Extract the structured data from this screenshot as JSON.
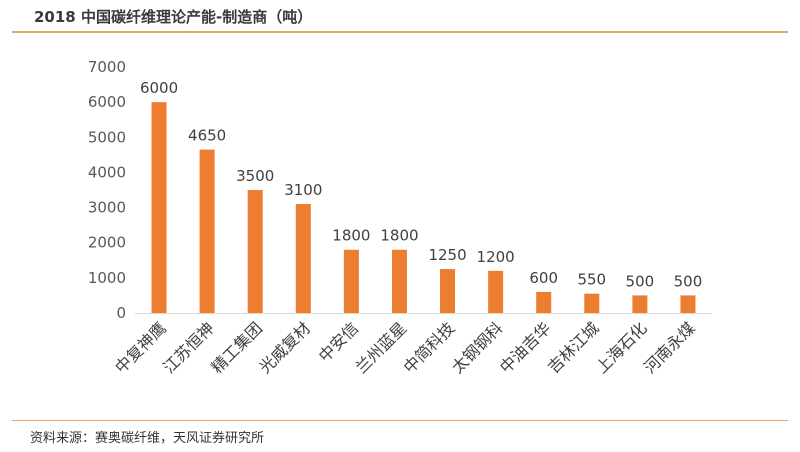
{
  "header": {
    "title": "2018 中国碳纤维理论产能-制造商（吨）"
  },
  "footer": {
    "source": "资料来源：赛奥碳纤维，天风证券研究所"
  },
  "chart_data": {
    "type": "bar",
    "title": "2018 中国碳纤维理论产能-制造商（吨）",
    "xlabel": "",
    "ylabel": "",
    "categories": [
      "中复神鹰",
      "江苏恒神",
      "精工集团",
      "光威复材",
      "中安信",
      "兰州蓝星",
      "中简科技",
      "太钢钢科",
      "中油吉华",
      "吉林江城",
      "上海石化",
      "河南永煤"
    ],
    "series": [
      {
        "values": [
          6000,
          4650,
          3500,
          3100,
          1800,
          1800,
          1250,
          1200,
          600,
          550,
          500,
          500
        ]
      }
    ],
    "ylim": [
      0,
      7000
    ],
    "yticks": [
      0,
      1000,
      2000,
      3000,
      4000,
      5000,
      6000,
      7000
    ],
    "bar_color": "#ed7d31",
    "axis_color": "#d9d9d9",
    "grid": false,
    "data_labels": true
  }
}
